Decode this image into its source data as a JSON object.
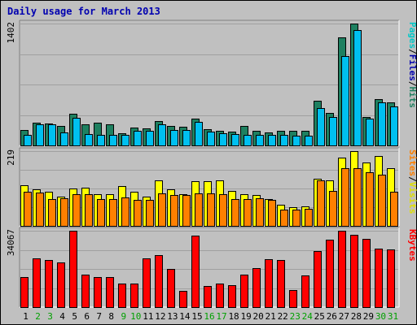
{
  "chart_data": {
    "type": "bar",
    "title": "Daily usage for March 2013",
    "days": [
      "1",
      "2",
      "3",
      "4",
      "5",
      "6",
      "7",
      "8",
      "9",
      "10",
      "11",
      "12",
      "13",
      "14",
      "15",
      "16",
      "17",
      "18",
      "19",
      "20",
      "21",
      "22",
      "23",
      "24",
      "25",
      "26",
      "27",
      "28",
      "29",
      "30",
      "31"
    ],
    "weekend_days": [
      "2",
      "3",
      "9",
      "10",
      "16",
      "17",
      "23",
      "24",
      "30",
      "31"
    ],
    "panels": [
      {
        "name": "pages-files-hits",
        "max_label": "1402",
        "ymax": 1402,
        "series": [
          {
            "name": "Hits",
            "color": "#1e8060",
            "values": [
              173,
              265,
              257,
              224,
              368,
              239,
              265,
              239,
              140,
              203,
              197,
              276,
              223,
              218,
              309,
              186,
              169,
              160,
              224,
              170,
              150,
              170,
              170,
              170,
              510,
              370,
              1240,
              1402,
              330,
              535,
              500
            ]
          },
          {
            "name": "Files",
            "color": "#00c0f0",
            "values": [
              120,
              240,
              240,
              146,
              315,
              127,
              120,
              120,
              120,
              171,
              171,
              240,
              180,
              180,
              273,
              159,
              138,
              128,
              120,
              120,
              120,
              120,
              115,
              115,
              427,
              325,
              1030,
              1325,
              305,
              492,
              453
            ]
          },
          {
            "name": "Pages",
            "color": "#00c8c8"
          }
        ],
        "right_label": [
          {
            "text": "Pages",
            "color": "#00c8c8"
          },
          {
            "text": "/",
            "color": "#000000"
          },
          {
            "text": "Files",
            "color": "#0000b0"
          },
          {
            "text": "/",
            "color": "#000000"
          },
          {
            "text": "Hits",
            "color": "#1e8060"
          }
        ]
      },
      {
        "name": "visits-sites",
        "max_label": "219",
        "ymax": 219,
        "series": [
          {
            "name": "Visits",
            "color": "#ffff00",
            "values": [
              120,
              107,
              100,
              85,
              109,
              111,
              93,
              93,
              117,
              99,
              85,
              133,
              107,
              93,
              130,
              130,
              133,
              102,
              93,
              91,
              79,
              61,
              54,
              58,
              138,
              134,
              200,
              219,
              185,
              205,
              170
            ]
          },
          {
            "name": "Sites",
            "color": "#ff8000",
            "values": [
              100,
              98,
              78,
              80,
              94,
              94,
              78,
              78,
              84,
              76,
              76,
              96,
              91,
              91,
              95,
              95,
              92,
              79,
              79,
              80,
              75,
              48,
              47,
              50,
              134,
              102,
              170,
              169,
              157,
              151,
              100
            ]
          }
        ],
        "right_label": [
          {
            "text": "Sites",
            "color": "#ff8000"
          },
          {
            "text": "/",
            "color": "#000000"
          },
          {
            "text": "Visits",
            "color": "#e0e000"
          }
        ]
      },
      {
        "name": "kbytes",
        "max_label": "34067",
        "ymax": 34067,
        "series": [
          {
            "name": "KBytes",
            "color": "#ff0000",
            "values": [
              13240,
              21850,
              20840,
              19830,
              34067,
              14660,
              13240,
              13240,
              10420,
              10420,
              21640,
              23300,
              16880,
              7200,
              31800,
              9400,
              10420,
              9800,
              14640,
              17270,
              21260,
              21070,
              7600,
              14040,
              24830,
              30100,
              34067,
              32260,
              30450,
              26070,
              25870
            ]
          }
        ],
        "right_label": [
          {
            "text": "KBytes",
            "color": "#ff0000"
          }
        ]
      }
    ]
  }
}
